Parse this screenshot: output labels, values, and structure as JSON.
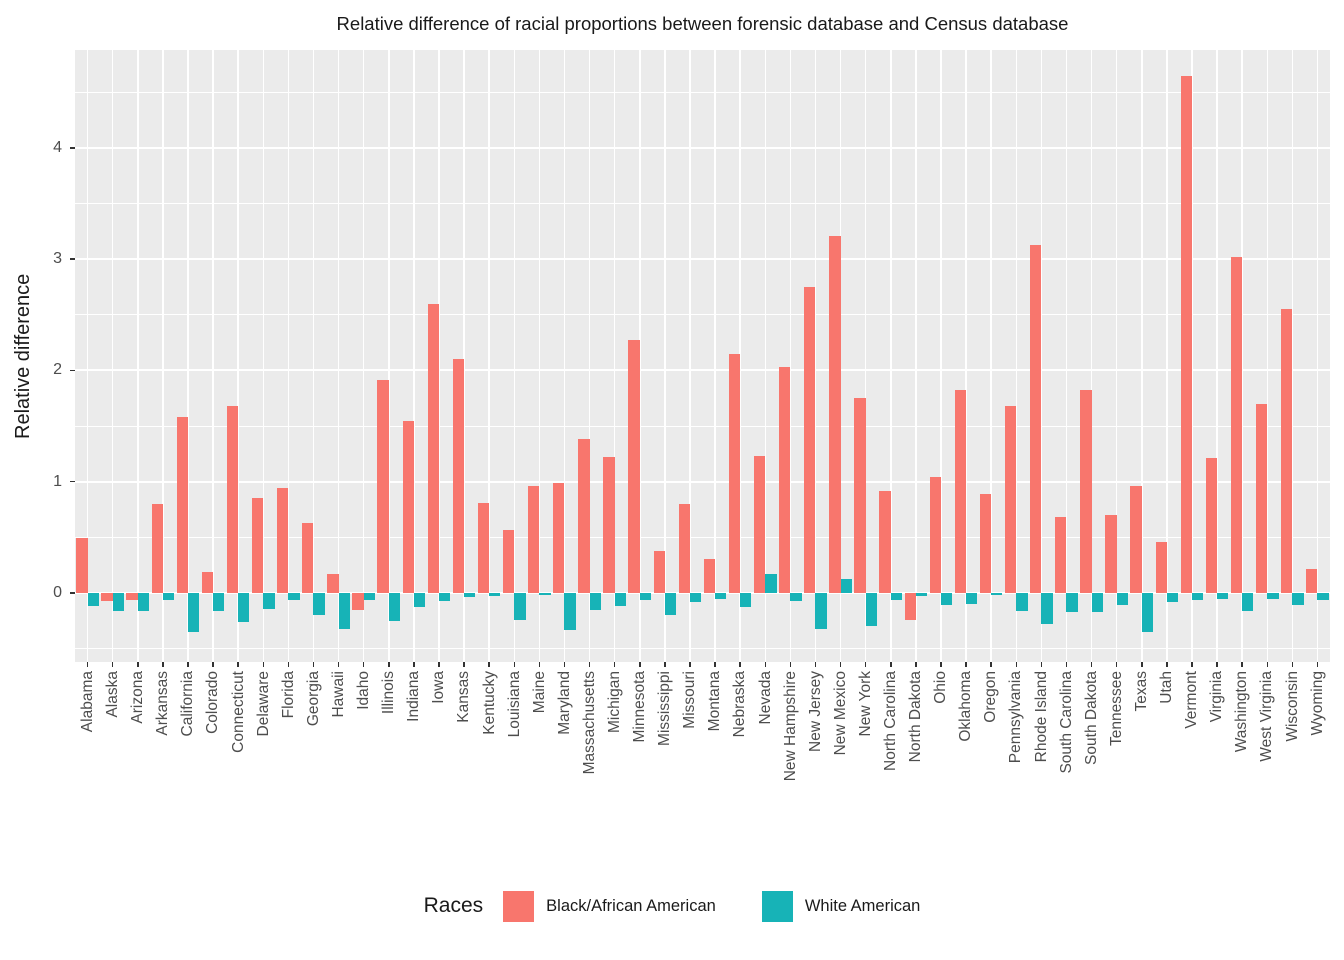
{
  "title": "Relative difference of racial proportions between forensic database and Census database",
  "ylabel": "Relative difference",
  "legend": {
    "title": "Races",
    "entries": [
      {
        "label": "Black/African American",
        "color": "#F8766D"
      },
      {
        "label": "White American",
        "color": "#17B3B7"
      }
    ]
  },
  "panel_background": "#EBEBEB",
  "gridline_color": "#FFFFFF",
  "chart_data": {
    "type": "bar",
    "title": "Relative difference of racial proportions between forensic database and Census database",
    "xlabel": "",
    "ylabel": "Relative difference",
    "legend_position": "bottom",
    "grid": true,
    "ylim": [
      -0.62,
      4.88
    ],
    "yticks": [
      0,
      1,
      2,
      3,
      4
    ],
    "minor_ticks": [
      -0.5,
      0.5,
      1.5,
      2.5,
      3.5,
      4.5
    ],
    "categories": [
      "Alabama",
      "Alaska",
      "Arizona",
      "Arkansas",
      "California",
      "Colorado",
      "Connecticut",
      "Delaware",
      "Florida",
      "Georgia",
      "Hawaii",
      "Idaho",
      "Illinois",
      "Indiana",
      "Iowa",
      "Kansas",
      "Kentucky",
      "Louisiana",
      "Maine",
      "Maryland",
      "Massachusetts",
      "Michigan",
      "Minnesota",
      "Mississippi",
      "Missouri",
      "Montana",
      "Nebraska",
      "Nevada",
      "New Hampshire",
      "New Jersey",
      "New Mexico",
      "New York",
      "North Carolina",
      "North Dakota",
      "Ohio",
      "Oklahoma",
      "Oregon",
      "Pennsylvania",
      "Rhode Island",
      "South Carolina",
      "South Dakota",
      "Tennessee",
      "Texas",
      "Utah",
      "Vermont",
      "Virginia",
      "Washington",
      "West Virginia",
      "Wisconsin",
      "Wyoming"
    ],
    "series": [
      {
        "name": "Black/African American",
        "color": "#F8766D",
        "values": [
          0.49,
          -0.07,
          -0.06,
          0.8,
          1.58,
          0.19,
          1.68,
          0.85,
          0.94,
          0.63,
          0.17,
          -0.15,
          1.91,
          1.55,
          2.6,
          2.1,
          0.81,
          0.57,
          0.96,
          0.99,
          1.38,
          1.22,
          2.27,
          0.38,
          0.8,
          0.31,
          2.15,
          1.23,
          2.03,
          2.75,
          3.21,
          1.75,
          0.92,
          -0.24,
          1.04,
          1.82,
          0.89,
          1.68,
          3.13,
          0.68,
          1.82,
          0.7,
          0.96,
          0.46,
          4.65,
          1.21,
          3.02,
          1.7,
          2.55,
          0.22
        ]
      },
      {
        "name": "White American",
        "color": "#17B3B7",
        "values": [
          -0.12,
          -0.16,
          -0.16,
          -0.06,
          -0.35,
          -0.16,
          -0.26,
          -0.14,
          -0.06,
          -0.2,
          -0.32,
          -0.06,
          -0.25,
          -0.13,
          -0.07,
          -0.04,
          -0.03,
          -0.24,
          -0.02,
          -0.33,
          -0.15,
          -0.12,
          -0.06,
          -0.2,
          -0.08,
          -0.05,
          -0.13,
          0.17,
          -0.07,
          -0.32,
          0.13,
          -0.3,
          -0.06,
          -0.03,
          -0.11,
          -0.1,
          -0.02,
          -0.16,
          -0.28,
          -0.17,
          -0.17,
          -0.11,
          -0.35,
          -0.08,
          -0.06,
          -0.05,
          -0.16,
          -0.05,
          -0.11,
          -0.06
        ]
      }
    ]
  }
}
